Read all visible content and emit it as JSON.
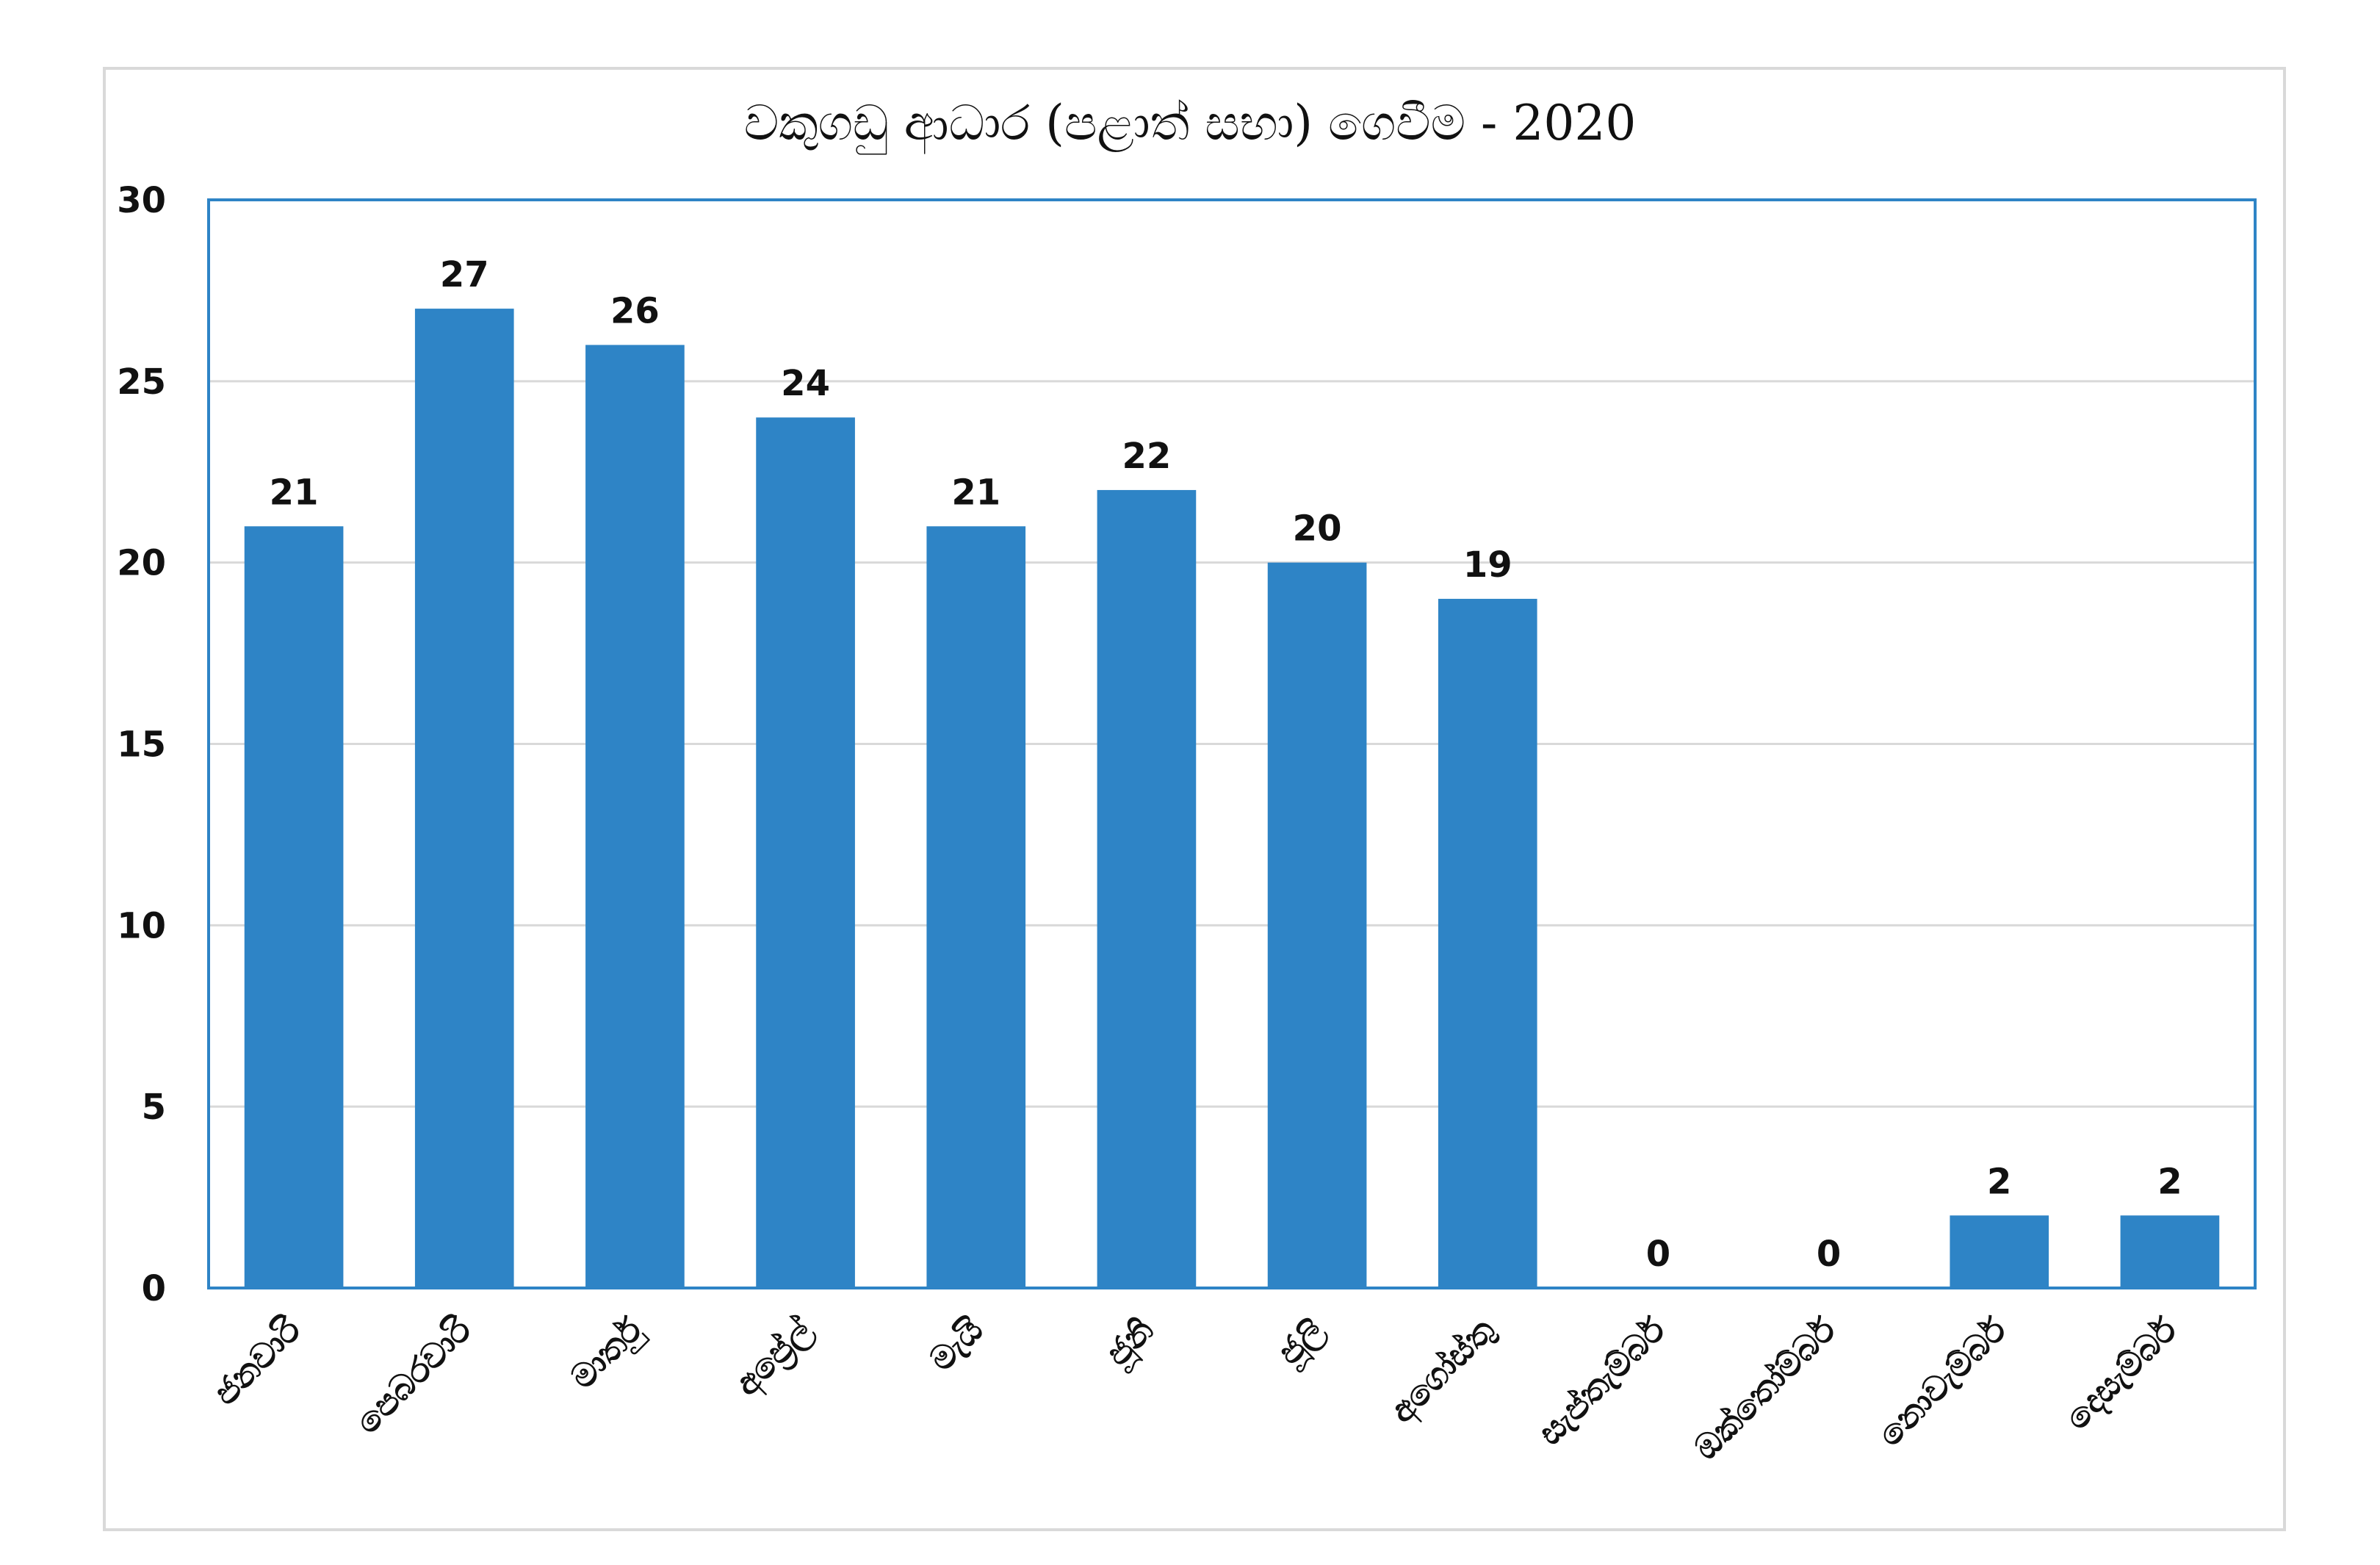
{
  "chart_data": {
    "type": "bar",
    "title": "වකුගඩු ආධාර (පළාත් සභා) ගෙවීම - 2020",
    "categories": [
      "ජනවාරි",
      "පෙබරවාරි",
      "මාර්තු",
      "අප්‍රේල්",
      "මැයි",
      "ජූනි",
      "ජූලි",
      "අගෝස්තු",
      "සැප්තැම්බර්",
      "ඔක්තෝම්බර්",
      "නොවැම්බර්",
      "දෙසැම්බර්"
    ],
    "values": [
      21,
      27,
      26,
      24,
      21,
      22,
      20,
      19,
      0,
      0,
      2,
      2
    ],
    "data_labels": [
      "21",
      "27",
      "26",
      "24",
      "21",
      "22",
      "20",
      "19",
      "0",
      "0",
      "2",
      "2"
    ],
    "yticks": [
      "0",
      "5",
      "10",
      "15",
      "20",
      "25",
      "30"
    ],
    "ylim": [
      0,
      30
    ],
    "xlabel": "",
    "ylabel": "",
    "grid": true,
    "legend": "none",
    "bar_color": "#2e84c6",
    "plot_border_color": "#2e84c6",
    "grid_color": "#d9d9d9"
  }
}
